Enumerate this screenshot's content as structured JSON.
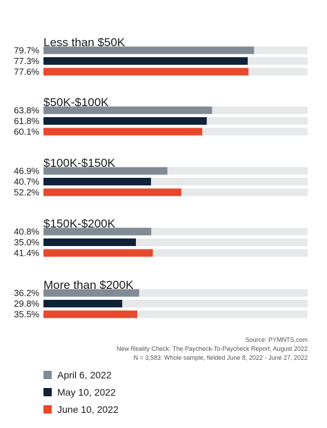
{
  "chart_data": {
    "type": "bar",
    "orientation": "horizontal",
    "xlim": [
      0,
      100
    ],
    "grid": false,
    "legend_position": "bottom-left",
    "categories": [
      "Less than $50K",
      "$50K-$100K",
      "$100K-$150K",
      "$150K-$200K",
      "More than $200K"
    ],
    "series": [
      {
        "name": "April 6, 2022",
        "color": "#808b96",
        "values": [
          79.7,
          63.8,
          46.9,
          40.8,
          36.2
        ],
        "labels": [
          "79.7%",
          "63.8%",
          "46.9%",
          "40.8%",
          "36.2%"
        ]
      },
      {
        "name": "May 10, 2022",
        "color": "#10223a",
        "values": [
          77.3,
          61.8,
          40.7,
          35.0,
          29.8
        ],
        "labels": [
          "77.3%",
          "61.8%",
          "40.7%",
          "35.0%",
          "29.8%"
        ]
      },
      {
        "name": "June 10, 2022",
        "color": "#e8482c",
        "values": [
          77.6,
          60.1,
          52.2,
          41.4,
          35.5
        ],
        "labels": [
          "77.6%",
          "60.1%",
          "52.2%",
          "41.4%",
          "35.5%"
        ]
      }
    ],
    "track_color": "#e6e8e9"
  },
  "source": {
    "line1": "Source:  PYMNTS.com",
    "line2": "New Reality Check: The Paycheck-To-Paycheck Report, August 2022",
    "line3": "N = 3,583: Whole sample, fielded June 8, 2022 - June 27, 2022"
  }
}
